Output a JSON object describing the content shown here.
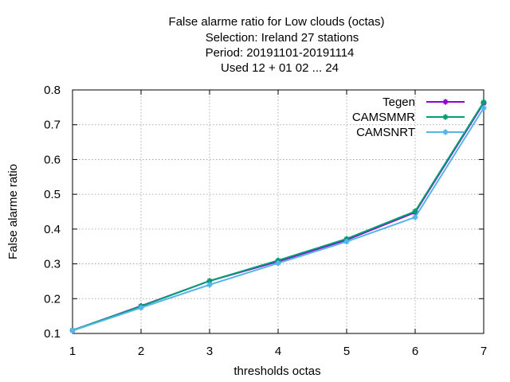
{
  "chart_data": {
    "type": "line",
    "title_lines": [
      "False alarme ratio  for Low clouds (octas)",
      "Selection: Ireland      27 stations",
      "Period: 20191101-20191114",
      "Used  12 + 01 02 ... 24"
    ],
    "xlabel": "thresholds octas",
    "ylabel": "False alarme ratio",
    "x": [
      1,
      2,
      3,
      4,
      5,
      6,
      7
    ],
    "xlim": [
      1,
      7
    ],
    "ylim": [
      0.1,
      0.8
    ],
    "xticks": [
      "1",
      "2",
      "3",
      "4",
      "5",
      "6",
      "7"
    ],
    "yticks": [
      "0.1",
      "0.2",
      "0.3",
      "0.4",
      "0.5",
      "0.6",
      "0.7",
      "0.8"
    ],
    "grid": true,
    "legend_position": "top-right",
    "series": [
      {
        "name": "Tegen",
        "color": "#9400d3",
        "values": [
          0.109,
          0.179,
          0.251,
          0.307,
          0.369,
          0.448,
          0.762
        ]
      },
      {
        "name": "CAMSMMR",
        "color": "#009e73",
        "values": [
          0.109,
          0.178,
          0.251,
          0.31,
          0.372,
          0.451,
          0.765
        ]
      },
      {
        "name": "CAMSNRT",
        "color": "#56b4e9",
        "values": [
          0.108,
          0.174,
          0.24,
          0.302,
          0.364,
          0.434,
          0.748
        ]
      }
    ]
  }
}
